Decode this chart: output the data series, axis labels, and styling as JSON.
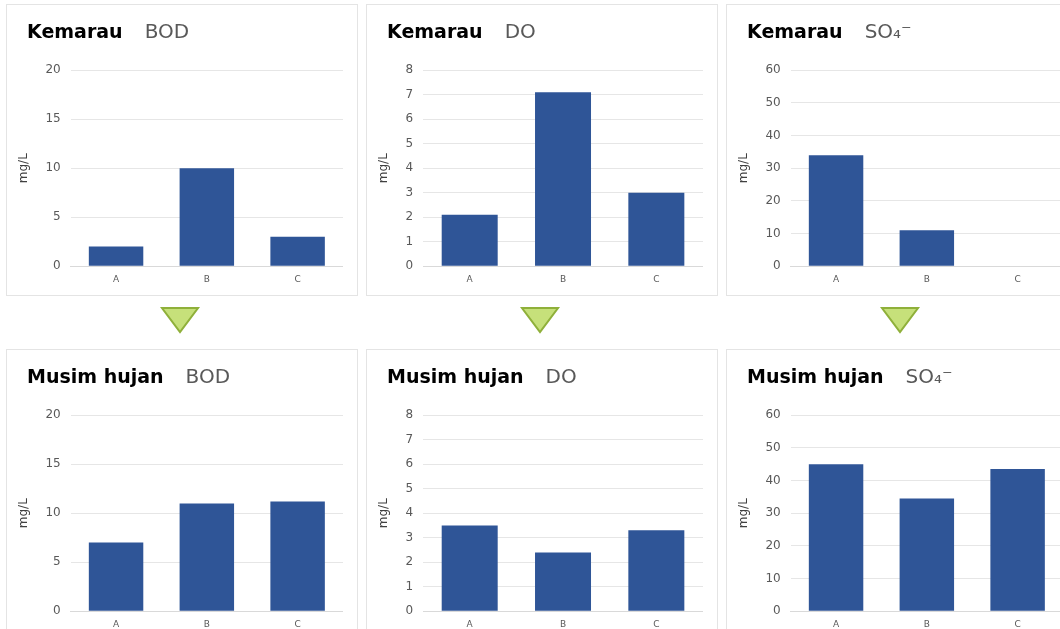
{
  "chart_data": [
    {
      "type": "bar",
      "title": "Kemarau",
      "subtitle": "BOD",
      "ylabel": "mg/L",
      "categories": [
        "A",
        "B",
        "C"
      ],
      "values": [
        2,
        10,
        3
      ],
      "color": "#2f5597",
      "ylim": [
        0,
        20
      ],
      "yticks": [
        0,
        5,
        10,
        15,
        20
      ],
      "grid": "y"
    },
    {
      "type": "bar",
      "title": "Kemarau",
      "subtitle": "DO",
      "ylabel": "mg/L",
      "categories": [
        "A",
        "B",
        "C"
      ],
      "values": [
        2.1,
        7.1,
        3
      ],
      "color": "#2f5597",
      "ylim": [
        0,
        8
      ],
      "yticks": [
        0,
        1,
        2,
        3,
        4,
        5,
        6,
        7,
        8
      ],
      "grid": "y"
    },
    {
      "type": "bar",
      "title": "Kemarau",
      "subtitle": "SO₄⁻",
      "ylabel": "mg/L",
      "categories": [
        "A",
        "B",
        "C"
      ],
      "values": [
        34,
        11,
        0
      ],
      "color": "#2f5597",
      "ylim": [
        0,
        60
      ],
      "yticks": [
        0,
        10,
        20,
        30,
        40,
        50,
        60
      ],
      "grid": "y"
    },
    {
      "type": "bar",
      "title": "Musim hujan",
      "subtitle": "BOD",
      "ylabel": "mg/L",
      "categories": [
        "A",
        "B",
        "C"
      ],
      "values": [
        7,
        11,
        11.2
      ],
      "color": "#2f5597",
      "ylim": [
        0,
        20
      ],
      "yticks": [
        0,
        5,
        10,
        15,
        20
      ],
      "grid": "y"
    },
    {
      "type": "bar",
      "title": "Musim hujan",
      "subtitle": "DO",
      "ylabel": "mg/L",
      "categories": [
        "A",
        "B",
        "C"
      ],
      "values": [
        3.5,
        2.4,
        3.3
      ],
      "color": "#2f5597",
      "ylim": [
        0,
        8
      ],
      "yticks": [
        0,
        1,
        2,
        3,
        4,
        5,
        6,
        7,
        8
      ],
      "grid": "y"
    },
    {
      "type": "bar",
      "title": "Musim hujan",
      "subtitle": "SO₄⁻",
      "ylabel": "mg/L",
      "categories": [
        "A",
        "B",
        "C"
      ],
      "values": [
        45,
        34.5,
        43.5
      ],
      "color": "#2f5597",
      "ylim": [
        0,
        60
      ],
      "yticks": [
        0,
        10,
        20,
        30,
        40,
        50,
        60
      ],
      "grid": "y"
    }
  ]
}
